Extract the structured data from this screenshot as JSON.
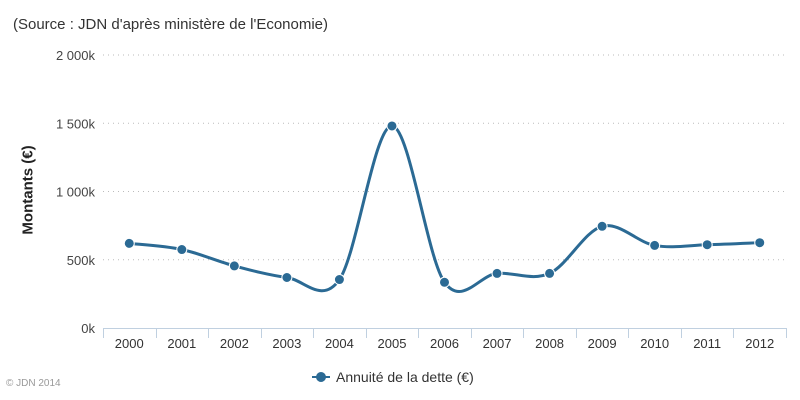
{
  "chart_data": {
    "type": "line",
    "subtitle": "(Source : JDN d'après ministère de l'Economie)",
    "ylabel": "Montants (€)",
    "xlabel": "",
    "categories": [
      "2000",
      "2001",
      "2002",
      "2003",
      "2004",
      "2005",
      "2006",
      "2007",
      "2008",
      "2009",
      "2010",
      "2011",
      "2012"
    ],
    "series": [
      {
        "name": "Annuité de la dette (€)",
        "color": "#2b6a94",
        "values": [
          620000,
          575000,
          455000,
          370000,
          355000,
          1480000,
          335000,
          400000,
          400000,
          745000,
          605000,
          610000,
          625000
        ]
      }
    ],
    "ylim": [
      0,
      2000000
    ],
    "yticks": [
      0,
      500000,
      1000000,
      1500000,
      2000000
    ],
    "ytick_labels": [
      "0k",
      "500k",
      "1 000k",
      "1 500k",
      "2 000k"
    ],
    "grid": true,
    "legend_position": "bottom-center",
    "credit": "© JDN 2014"
  }
}
